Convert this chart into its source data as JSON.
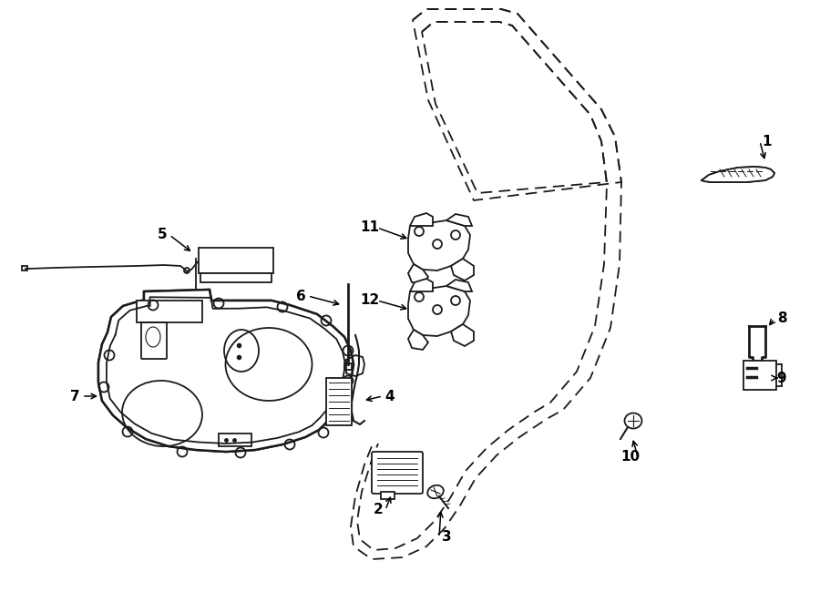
{
  "bg_color": "#ffffff",
  "line_color": "#1a1a1a",
  "lw": 1.3,
  "fig_width": 9.0,
  "fig_height": 6.61,
  "dpi": 100
}
